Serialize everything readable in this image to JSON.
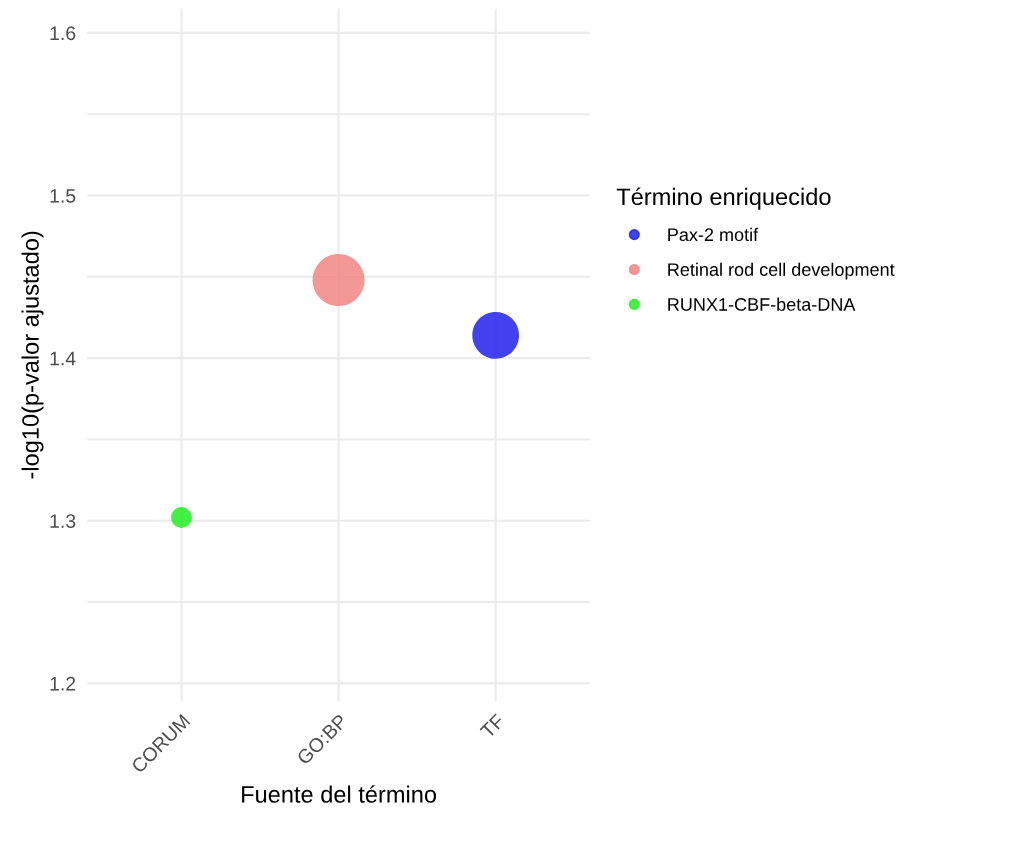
{
  "chart_data": {
    "type": "bubble",
    "xlabel": "Fuente del término",
    "ylabel": "-log10(p-valor ajustado)",
    "legend_title": "Término enriquecido",
    "categories": [
      "CORUM",
      "GO:BP",
      "TF"
    ],
    "series": [
      {
        "name": "Pax-2 motif",
        "color": "#2121ee",
        "values": [
          null,
          null,
          1.414
        ],
        "sizes": [
          null,
          null,
          0.81
        ]
      },
      {
        "name": "Retinal rod cell development",
        "color": "#f28585",
        "values": [
          null,
          1.448,
          null
        ],
        "sizes": [
          null,
          1,
          null
        ]
      },
      {
        "name": "RUNX1-CBF-beta-DNA",
        "color": "#22ee22",
        "values": [
          1.302,
          null,
          null
        ],
        "sizes": [
          0.16,
          null,
          null
        ]
      }
    ],
    "ylim": [
      1.189,
      1.615
    ],
    "yticks": [
      1.2,
      {
        "value": 1.25,
        "label": null
      },
      1.3,
      {
        "value": 1.35,
        "label": null
      },
      1.4,
      {
        "value": 1.45,
        "label": null
      },
      1.5,
      {
        "value": 1.55,
        "label": null
      },
      1.6
    ],
    "grid": true,
    "legend": "right"
  }
}
